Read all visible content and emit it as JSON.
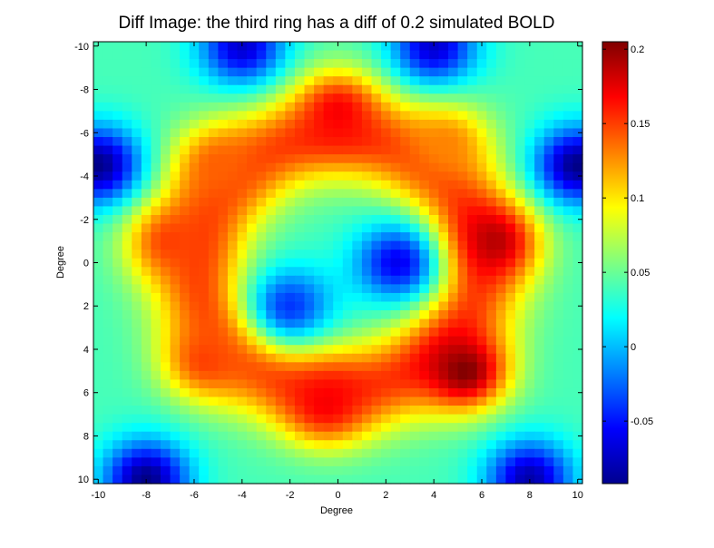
{
  "chart_data": {
    "type": "heatmap",
    "title": "Diff Image: the third ring has a diff of 0.2 simulated BOLD",
    "xlabel": "Degree",
    "ylabel": "Degree",
    "xlim": [
      -10.2,
      10.2
    ],
    "ylim": [
      10.2,
      -10.2
    ],
    "y_axis_reversed": true,
    "xticks": [
      -10,
      -8,
      -6,
      -4,
      -2,
      0,
      2,
      4,
      6,
      8,
      10
    ],
    "xtick_labels": [
      "-10",
      "-8",
      "-6",
      "-4",
      "-2",
      "0",
      "2",
      "4",
      "6",
      "8",
      "10"
    ],
    "yticks": [
      -10,
      -8,
      -6,
      -4,
      -2,
      0,
      2,
      4,
      6,
      8,
      10
    ],
    "ytick_labels": [
      "-10",
      "-8",
      "-6",
      "-4",
      "-2",
      "0",
      "2",
      "4",
      "6",
      "8",
      "10"
    ],
    "colormap": "jet",
    "clim": [
      -0.092,
      0.205
    ],
    "colorbar": {
      "ticks": [
        -0.05,
        0,
        0.05,
        0.1,
        0.15,
        0.2
      ],
      "tick_labels": [
        "-0.05",
        "0",
        "0.05",
        "0.1",
        "0.15",
        "0.2"
      ]
    },
    "grid": false,
    "features": [
      {
        "x": 0,
        "y": -7,
        "value": 0.17
      },
      {
        "x": 6.5,
        "y": -1,
        "value": 0.19
      },
      {
        "x": 5.3,
        "y": 5,
        "value": 0.205
      },
      {
        "x": -0.5,
        "y": 6.5,
        "value": 0.17
      },
      {
        "x": -5.5,
        "y": 4.5,
        "value": 0.15
      },
      {
        "x": -7,
        "y": -1,
        "value": 0.15
      },
      {
        "x": -5,
        "y": -4.5,
        "value": 0.14
      },
      {
        "x": 4.5,
        "y": -5.5,
        "value": 0.13
      },
      {
        "x": 2.5,
        "y": 0,
        "value": -0.06
      },
      {
        "x": -2,
        "y": 2,
        "value": -0.04
      },
      {
        "x": -10,
        "y": -4.5,
        "value": -0.09
      },
      {
        "x": 10,
        "y": -4.5,
        "value": -0.09
      },
      {
        "x": -8,
        "y": 10,
        "value": -0.09
      },
      {
        "x": 8,
        "y": 10,
        "value": -0.08
      },
      {
        "x": -4,
        "y": -10,
        "value": -0.07
      },
      {
        "x": 4,
        "y": -10,
        "value": -0.07
      }
    ]
  }
}
